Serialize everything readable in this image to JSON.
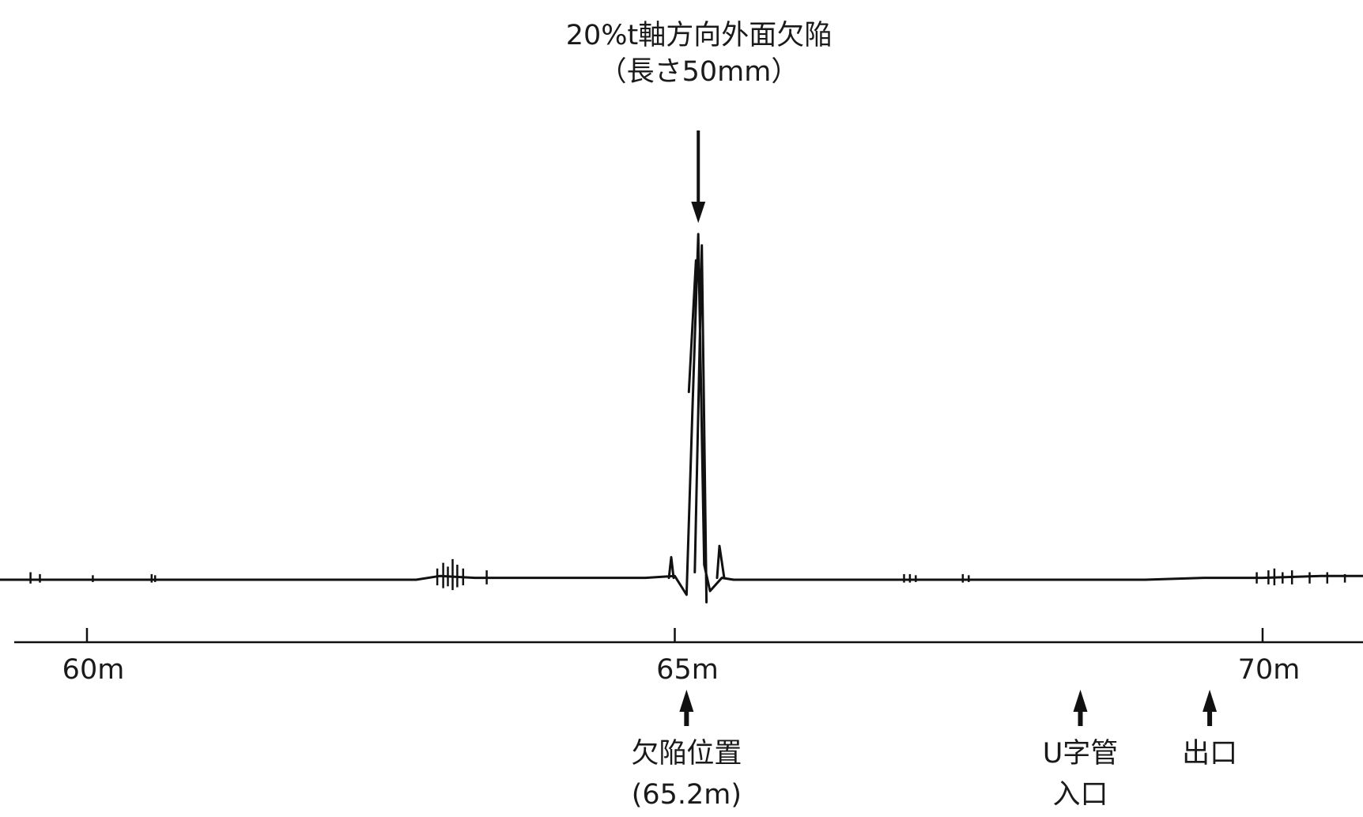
{
  "chart_data": {
    "type": "line",
    "title": "20%t軸方向外面欠陥",
    "subtitle": "（長さ50mm）",
    "xlabel": "",
    "ylabel": "",
    "xlim": [
      58.75,
      71.3
    ],
    "ylim": [
      -1,
      10
    ],
    "grid": false,
    "ticks": [
      {
        "value": 60,
        "label": "60m"
      },
      {
        "value": 65,
        "label": "65m"
      },
      {
        "value": 70,
        "label": "70m"
      }
    ],
    "annotations": [
      {
        "kind": "down-arrow",
        "x": 65.2,
        "text": ""
      },
      {
        "kind": "up-arrow",
        "x": 65.1,
        "line1": "欠陥位置",
        "line2": "(65.2m)"
      },
      {
        "kind": "up-arrow",
        "x": 68.45,
        "line1": "U字管",
        "line2": "入口"
      },
      {
        "kind": "up-arrow",
        "x": 69.55,
        "line1": "出口",
        "line2": ""
      }
    ],
    "series": [
      {
        "x": [
          58.8,
          59.5,
          60.2,
          60.8,
          61.5,
          62.4,
          62.8,
          63.0,
          63.3,
          63.6,
          64.0,
          64.5,
          64.75,
          65.0,
          65.1,
          65.15,
          65.2,
          65.25,
          65.3,
          65.4,
          65.5,
          66.0,
          66.5,
          67.0,
          67.5,
          68.0,
          68.5,
          69.0,
          69.5,
          70.0,
          70.5,
          71.0,
          71.3
        ],
        "y": [
          0,
          0,
          0,
          0,
          0,
          0,
          0,
          0.1,
          0.05,
          0.05,
          0.05,
          0.05,
          0.05,
          0.1,
          -0.4,
          4.5,
          9.2,
          0.4,
          -0.3,
          0.05,
          0,
          0,
          0,
          0,
          0,
          0,
          0,
          0,
          0.05,
          0.05,
          0.1,
          0.1,
          0.1
        ]
      }
    ]
  }
}
